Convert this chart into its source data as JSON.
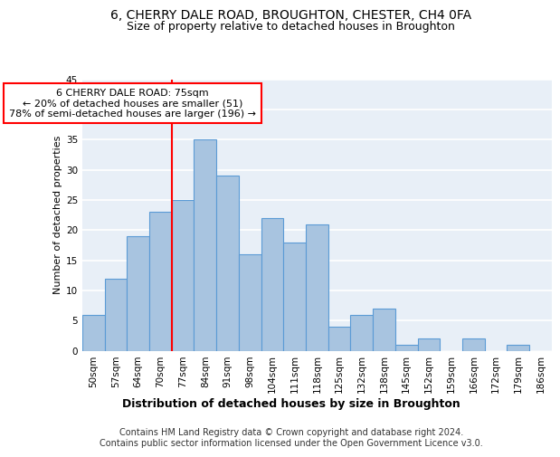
{
  "title1": "6, CHERRY DALE ROAD, BROUGHTON, CHESTER, CH4 0FA",
  "title2": "Size of property relative to detached houses in Broughton",
  "xlabel": "Distribution of detached houses by size in Broughton",
  "ylabel": "Number of detached properties",
  "categories": [
    "50sqm",
    "57sqm",
    "64sqm",
    "70sqm",
    "77sqm",
    "84sqm",
    "91sqm",
    "98sqm",
    "104sqm",
    "111sqm",
    "118sqm",
    "125sqm",
    "132sqm",
    "138sqm",
    "145sqm",
    "152sqm",
    "159sqm",
    "166sqm",
    "172sqm",
    "179sqm",
    "186sqm"
  ],
  "values": [
    6,
    12,
    19,
    23,
    25,
    35,
    29,
    16,
    22,
    18,
    21,
    4,
    6,
    7,
    1,
    2,
    0,
    2,
    0,
    1,
    0
  ],
  "bar_color": "#a8c4e0",
  "bar_edge_color": "#5b9bd5",
  "vline_idx": 4,
  "vline_color": "red",
  "annotation_text": "6 CHERRY DALE ROAD: 75sqm\n← 20% of detached houses are smaller (51)\n78% of semi-detached houses are larger (196) →",
  "annotation_box_color": "white",
  "annotation_box_edge": "red",
  "ylim": [
    0,
    45
  ],
  "yticks": [
    0,
    5,
    10,
    15,
    20,
    25,
    30,
    35,
    40,
    45
  ],
  "footnote": "Contains HM Land Registry data © Crown copyright and database right 2024.\nContains public sector information licensed under the Open Government Licence v3.0.",
  "background_color": "#e8eff7",
  "grid_color": "#ffffff",
  "title1_fontsize": 10,
  "title2_fontsize": 9,
  "xlabel_fontsize": 9,
  "ylabel_fontsize": 8,
  "tick_fontsize": 7.5,
  "footnote_fontsize": 7,
  "annot_fontsize": 8
}
